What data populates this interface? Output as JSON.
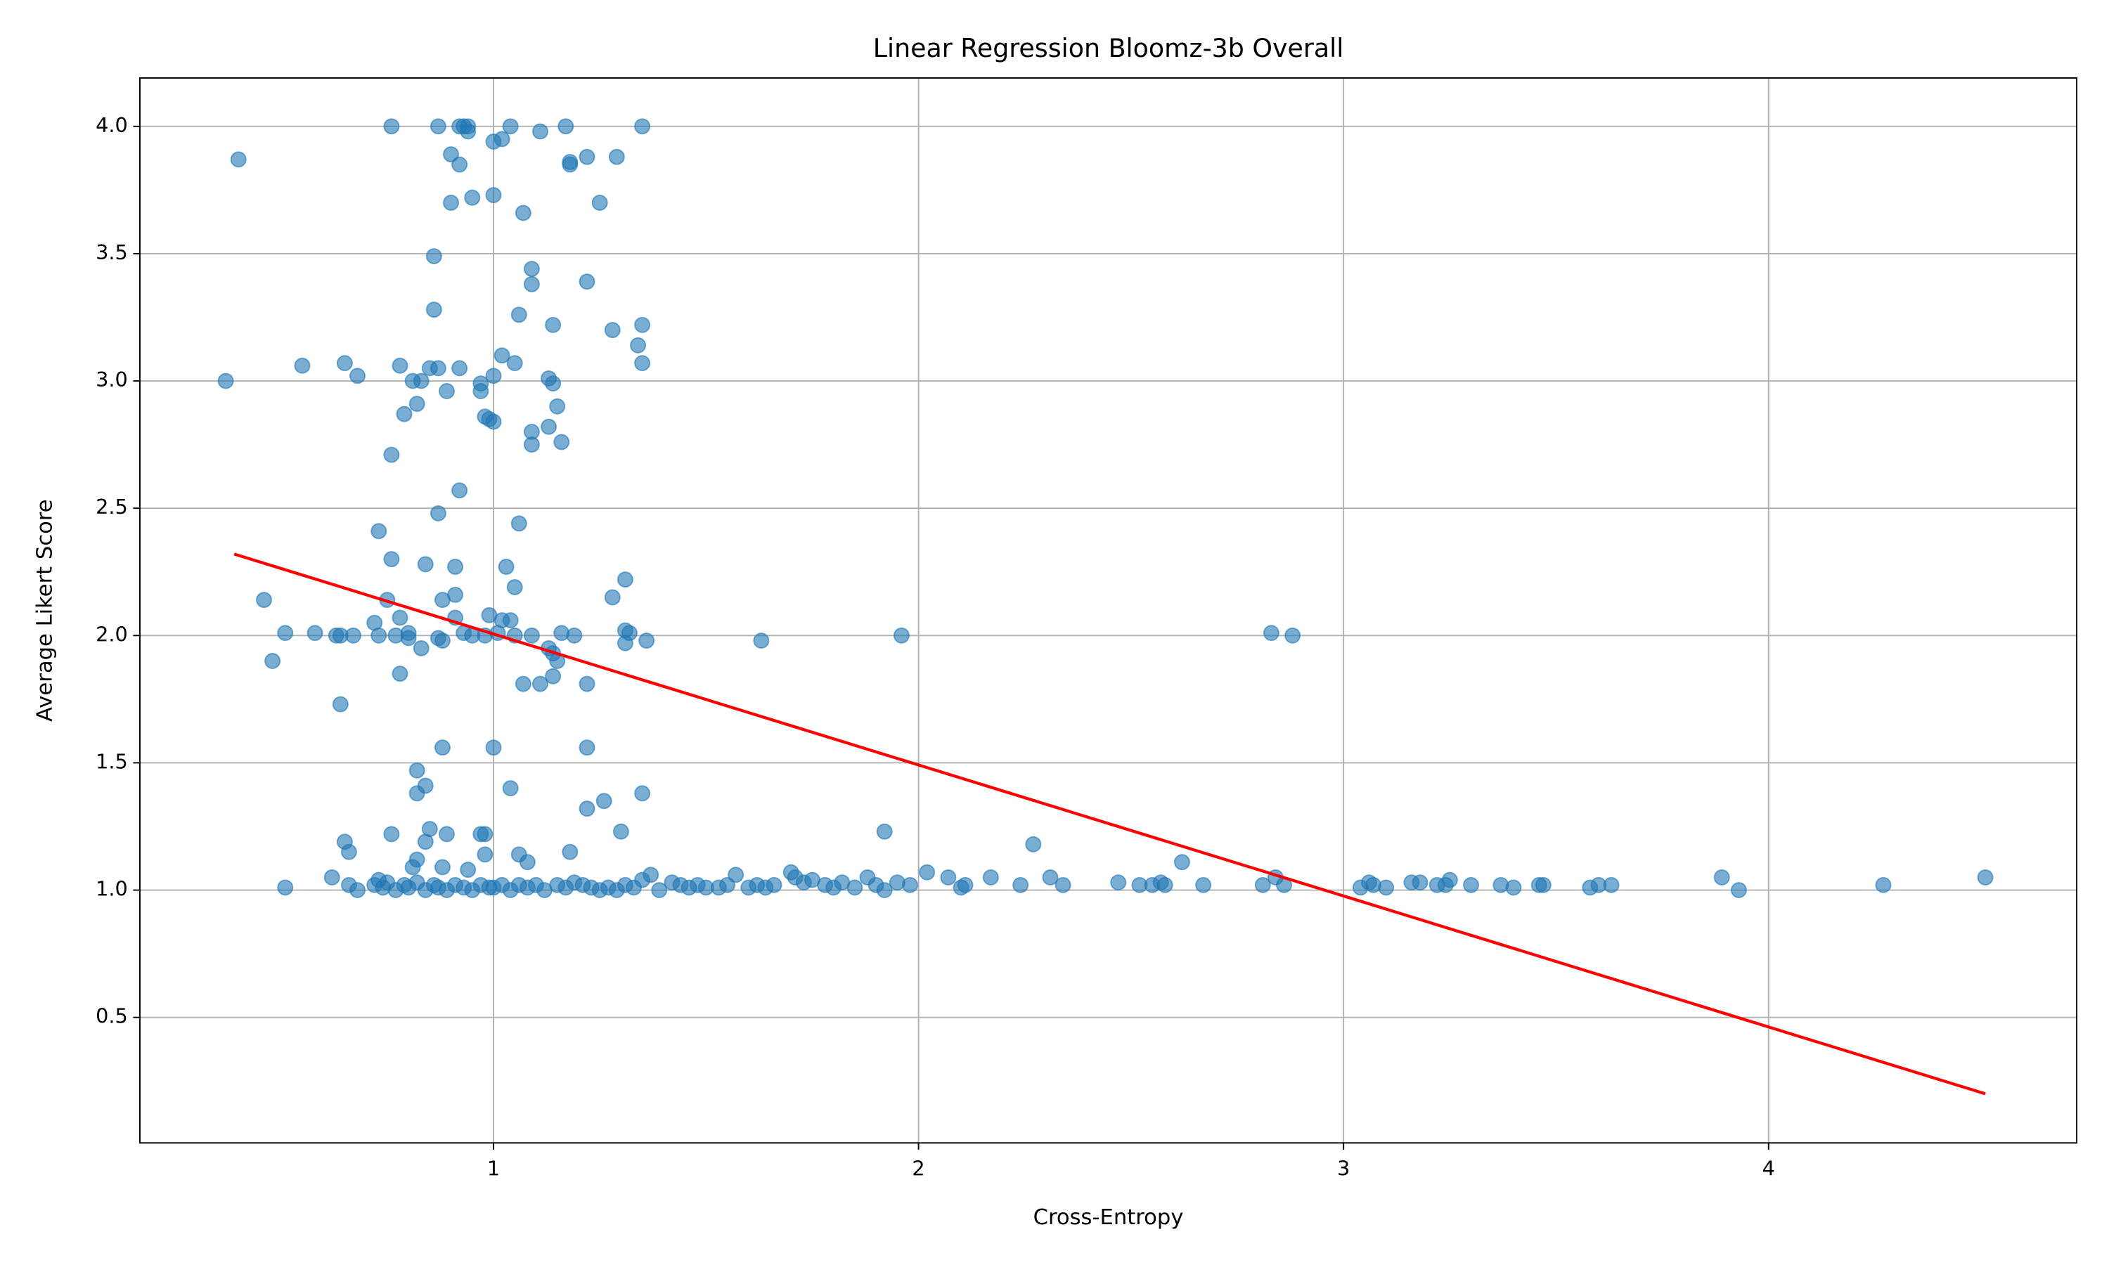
{
  "chart_data": {
    "type": "scatter",
    "title": "Linear Regression Bloomz-3b Overall",
    "x_label": "Cross-Entropy",
    "y_label": "Average Likert Score",
    "xlim": [
      0.168,
      4.725
    ],
    "ylim": [
      0.007,
      4.19
    ],
    "xticks": [
      1,
      2,
      3,
      4
    ],
    "yticks": [
      0.5,
      {
        "value": 1,
        "label": "1.0"
      },
      1.5,
      {
        "value": 2,
        "label": "2.0"
      },
      2.5,
      {
        "value": 3,
        "label": "3.0"
      },
      3.5,
      {
        "value": 4,
        "label": "4.0"
      }
    ],
    "grid": true,
    "series": [
      {
        "type": "scatter",
        "color": "#1f77b4",
        "x": [
          0.76,
          0.87,
          0.92,
          0.93,
          0.94,
          0.94,
          1.04,
          1.17,
          1.35,
          0.4,
          1.11,
          1.0,
          1.02,
          0.9,
          1.22,
          1.29,
          1.18,
          1.18,
          0.92,
          1.0,
          0.95,
          0.9,
          1.25,
          1.07,
          0.86,
          1.09,
          1.22,
          1.09,
          0.86,
          1.06,
          1.14,
          1.35,
          1.28,
          1.34,
          1.02,
          0.65,
          1.05,
          1.35,
          0.55,
          0.78,
          0.85,
          0.87,
          0.92,
          0.68,
          1.0,
          1.13,
          0.37,
          0.81,
          0.83,
          0.97,
          1.14,
          0.89,
          0.97,
          0.82,
          1.15,
          0.79,
          0.98,
          0.99,
          1.0,
          1.13,
          1.09,
          1.16,
          1.09,
          0.76,
          0.92,
          0.87,
          1.06,
          0.73,
          0.76,
          0.84,
          0.91,
          1.03,
          1.31,
          1.05,
          0.91,
          1.28,
          0.46,
          0.75,
          0.88,
          0.78,
          0.91,
          1.02,
          1.04,
          0.72,
          1.31,
          0.51,
          0.58,
          0.8,
          0.93,
          1.16,
          1.19,
          1.32,
          2.83,
          0.63,
          0.64,
          0.67,
          0.73,
          0.77,
          0.87,
          0.95,
          0.98,
          0.99,
          1.01,
          1.05,
          1.09,
          1.96,
          2.88,
          0.8,
          1.36,
          0.88,
          1.63,
          1.31,
          0.83,
          1.13,
          1.14,
          0.48,
          1.15,
          0.78,
          1.14,
          1.07,
          1.11,
          1.22,
          0.64,
          0.88,
          1.0,
          1.22,
          0.82,
          0.84,
          1.04,
          0.82,
          1.35,
          1.26,
          1.22,
          0.85,
          1.3,
          1.92,
          0.76,
          0.89,
          0.97,
          0.98,
          0.65,
          0.84,
          2.27,
          0.66,
          1.18,
          0.98,
          1.06,
          0.82,
          2.62,
          1.08,
          0.88,
          0.81,
          0.94,
          0.51,
          0.62,
          0.66,
          0.68,
          0.72,
          0.73,
          0.74,
          0.75,
          0.77,
          0.79,
          0.8,
          0.82,
          0.84,
          0.86,
          0.87,
          0.89,
          0.91,
          0.93,
          0.95,
          0.97,
          0.99,
          1.02,
          1.04,
          1.06,
          1.08,
          1.1,
          1.12,
          1.15,
          1.17,
          1.19,
          1.21,
          1.23,
          1.25,
          1.27,
          1.29,
          1.31,
          1.33,
          1.35,
          1.37,
          1.39,
          1.42,
          1.44,
          1.46,
          1.48,
          1.5,
          1.53,
          1.55,
          1.57,
          1.6,
          1.62,
          1.64,
          1.66,
          1.7,
          1.71,
          1.73,
          1.75,
          1.78,
          1.8,
          1.82,
          1.85,
          1.88,
          1.9,
          1.92,
          1.95,
          1.98,
          2.02,
          2.07,
          2.1,
          2.11,
          2.17,
          2.24,
          2.31,
          2.34,
          2.47,
          2.52,
          2.55,
          2.57,
          2.58,
          2.67,
          2.81,
          2.84,
          2.86,
          3.04,
          3.06,
          3.07,
          3.1,
          3.16,
          3.18,
          3.22,
          3.24,
          3.25,
          3.3,
          3.37,
          3.4,
          3.46,
          3.47,
          3.58,
          3.6,
          3.63,
          3.89,
          3.93,
          4.27,
          4.51,
          1.0
        ],
        "y": [
          4.0,
          4.0,
          4.0,
          4.0,
          4.0,
          3.98,
          4.0,
          4.0,
          4.0,
          3.87,
          3.98,
          3.94,
          3.95,
          3.89,
          3.88,
          3.88,
          3.86,
          3.85,
          3.85,
          3.73,
          3.72,
          3.7,
          3.7,
          3.66,
          3.49,
          3.44,
          3.39,
          3.38,
          3.28,
          3.26,
          3.22,
          3.22,
          3.2,
          3.14,
          3.1,
          3.07,
          3.07,
          3.07,
          3.06,
          3.06,
          3.05,
          3.05,
          3.05,
          3.02,
          3.02,
          3.01,
          3.0,
          3.0,
          3.0,
          2.99,
          2.99,
          2.96,
          2.96,
          2.91,
          2.9,
          2.87,
          2.86,
          2.85,
          2.84,
          2.82,
          2.8,
          2.76,
          2.75,
          2.71,
          2.57,
          2.48,
          2.44,
          2.41,
          2.3,
          2.28,
          2.27,
          2.27,
          2.22,
          2.19,
          2.16,
          2.15,
          2.14,
          2.14,
          2.14,
          2.07,
          2.07,
          2.06,
          2.06,
          2.05,
          2.02,
          2.01,
          2.01,
          2.01,
          2.01,
          2.01,
          2.0,
          2.01,
          2.01,
          2.0,
          2.0,
          2.0,
          2.0,
          2.0,
          1.99,
          2.0,
          2.0,
          2.08,
          2.01,
          2.0,
          2.0,
          2.0,
          2.0,
          1.99,
          1.98,
          1.98,
          1.98,
          1.97,
          1.95,
          1.95,
          1.93,
          1.9,
          1.9,
          1.85,
          1.84,
          1.81,
          1.81,
          1.81,
          1.73,
          1.56,
          1.56,
          1.56,
          1.47,
          1.41,
          1.4,
          1.38,
          1.38,
          1.35,
          1.32,
          1.24,
          1.23,
          1.23,
          1.22,
          1.22,
          1.22,
          1.22,
          1.19,
          1.19,
          1.18,
          1.15,
          1.15,
          1.14,
          1.14,
          1.12,
          1.11,
          1.11,
          1.09,
          1.09,
          1.08,
          1.01,
          1.05,
          1.02,
          1.0,
          1.02,
          1.04,
          1.01,
          1.03,
          1.0,
          1.02,
          1.01,
          1.03,
          1.0,
          1.02,
          1.01,
          1.0,
          1.02,
          1.01,
          1.0,
          1.02,
          1.01,
          1.02,
          1.0,
          1.02,
          1.01,
          1.02,
          1.0,
          1.02,
          1.01,
          1.03,
          1.02,
          1.01,
          1.0,
          1.01,
          1.0,
          1.02,
          1.01,
          1.04,
          1.06,
          1.0,
          1.03,
          1.02,
          1.01,
          1.02,
          1.01,
          1.01,
          1.02,
          1.06,
          1.01,
          1.02,
          1.01,
          1.02,
          1.07,
          1.05,
          1.03,
          1.04,
          1.02,
          1.01,
          1.03,
          1.01,
          1.05,
          1.02,
          1.0,
          1.03,
          1.02,
          1.07,
          1.05,
          1.01,
          1.02,
          1.05,
          1.02,
          1.05,
          1.02,
          1.03,
          1.02,
          1.02,
          1.03,
          1.02,
          1.02,
          1.02,
          1.05,
          1.02,
          1.01,
          1.03,
          1.02,
          1.01,
          1.03,
          1.03,
          1.02,
          1.02,
          1.04,
          1.02,
          1.02,
          1.01,
          1.02,
          1.02,
          1.01,
          1.02,
          1.02,
          1.05,
          1.0,
          1.02,
          1.05,
          1.01
        ]
      },
      {
        "type": "line",
        "color": "#ff0000",
        "x": [
          0.39,
          4.51
        ],
        "y": [
          2.32,
          0.2
        ]
      }
    ]
  }
}
